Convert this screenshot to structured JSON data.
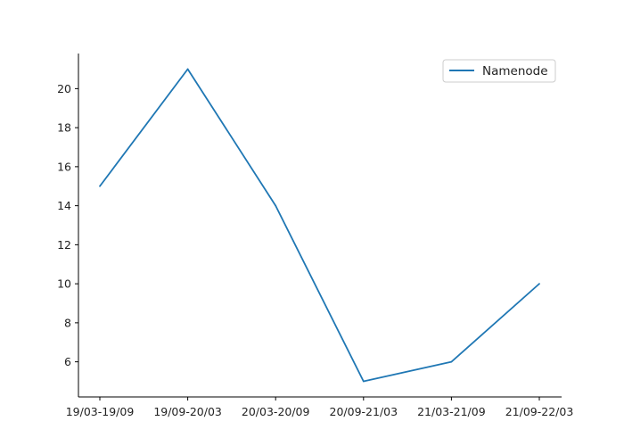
{
  "chart_data": {
    "type": "line",
    "title": "",
    "xlabel": "",
    "ylabel": "",
    "categories": [
      "19/03-19/09",
      "19/09-20/03",
      "20/03-20/09",
      "20/09-21/03",
      "21/03-21/09",
      "21/09-22/03"
    ],
    "series": [
      {
        "name": "Namenode",
        "values": [
          15,
          21,
          14,
          5,
          6,
          10
        ],
        "color": "#1f77b4"
      }
    ],
    "ylim": [
      4.2,
      21.8
    ],
    "yticks": [
      6,
      8,
      10,
      12,
      14,
      16,
      18,
      20
    ],
    "grid": false,
    "legend": "top-right",
    "spines": [
      "left",
      "bottom"
    ]
  }
}
